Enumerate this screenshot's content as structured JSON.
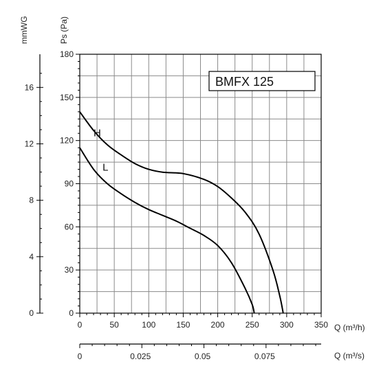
{
  "chart_data": {
    "type": "line",
    "title": "BMFX 125",
    "xlabel": "Q (m³/h)",
    "ylabel": "Ps (Pa)",
    "xlim": [
      0,
      350
    ],
    "ylim": [
      0,
      180
    ],
    "x_ticks": [
      0,
      50,
      100,
      150,
      200,
      250,
      300,
      350
    ],
    "y_ticks": [
      0,
      30,
      60,
      90,
      120,
      150,
      180
    ],
    "grid": true,
    "series": [
      {
        "name": "H",
        "x": [
          0,
          20,
          40,
          60,
          80,
          100,
          120,
          150,
          180,
          200,
          220,
          240,
          260,
          280,
          290,
          295
        ],
        "y": [
          140,
          127,
          117,
          110,
          104,
          100,
          98,
          97,
          93,
          88,
          80,
          70,
          55,
          30,
          12,
          0
        ]
      },
      {
        "name": "L",
        "x": [
          0,
          20,
          40,
          60,
          80,
          100,
          120,
          140,
          160,
          180,
          200,
          220,
          240,
          250,
          253
        ],
        "y": [
          115,
          100,
          90,
          83,
          77,
          72,
          68,
          64,
          59,
          54,
          47,
          35,
          17,
          6,
          0
        ]
      }
    ],
    "secondary_y_axis": {
      "label": "mmWG",
      "ticks": [
        0,
        4,
        8,
        12,
        16
      ],
      "range": [
        0,
        18.35
      ]
    },
    "secondary_x_axis": {
      "label": "Q (m³/s)",
      "ticks": [
        0,
        0.025,
        0.05,
        0.075
      ],
      "tick_labels": [
        "0",
        "0.025",
        "0.05",
        "0.075"
      ],
      "range": [
        0,
        0.0972
      ]
    }
  }
}
